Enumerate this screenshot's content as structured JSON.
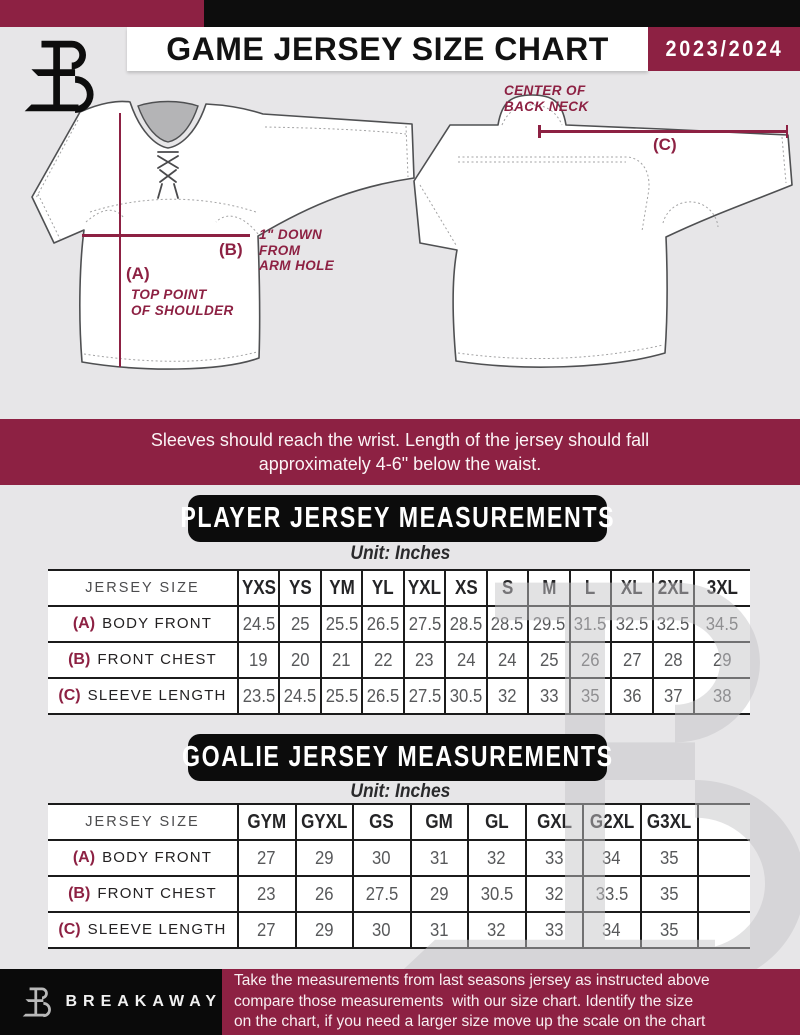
{
  "header": {
    "title": "GAME JERSEY SIZE CHART",
    "season": "2023/2024"
  },
  "diagram": {
    "front": {
      "a_label": "(A)",
      "a_caption": "TOP POINT\nOF SHOULDER",
      "b_label": "(B)",
      "b_caption": "1\" DOWN\nFROM\nARM HOLE"
    },
    "back": {
      "c_label": "(C)",
      "c_caption": "CENTER OF\nBACK NECK"
    }
  },
  "note": "Sleeves should reach the wrist. Length of the jersey should fall\napproximately 4-6\" below the waist.",
  "player_table": {
    "title": "PLAYER JERSEY MEASUREMENTS",
    "unit": "Unit: Inches",
    "corner": "JERSEY SIZE",
    "headers": [
      "YXS",
      "YS",
      "YM",
      "YL",
      "YXL",
      "XS",
      "S",
      "M",
      "L",
      "XL",
      "2XL",
      "3XL"
    ],
    "rows": [
      {
        "key": "(A)",
        "label": "BODY FRONT",
        "values": [
          "24.5",
          "25",
          "25.5",
          "26.5",
          "27.5",
          "28.5",
          "28.5",
          "29.5",
          "31.5",
          "32.5",
          "32.5",
          "34.5"
        ]
      },
      {
        "key": "(B)",
        "label": "FRONT CHEST",
        "values": [
          "19",
          "20",
          "21",
          "22",
          "23",
          "24",
          "24",
          "25",
          "26",
          "27",
          "28",
          "29"
        ]
      },
      {
        "key": "(C)",
        "label": "SLEEVE LENGTH",
        "values": [
          "23.5",
          "24.5",
          "25.5",
          "26.5",
          "27.5",
          "30.5",
          "32",
          "33",
          "35",
          "36",
          "37",
          "38"
        ]
      }
    ]
  },
  "goalie_table": {
    "title": "GOALIE JERSEY MEASUREMENTS",
    "unit": "Unit: Inches",
    "corner": "JERSEY SIZE",
    "headers": [
      "GYM",
      "GYXL",
      "GS",
      "GM",
      "GL",
      "GXL",
      "G2XL",
      "G3XL",
      ""
    ],
    "rows": [
      {
        "key": "(A)",
        "label": "BODY FRONT",
        "values": [
          "27",
          "29",
          "30",
          "31",
          "32",
          "33",
          "34",
          "35",
          ""
        ]
      },
      {
        "key": "(B)",
        "label": "FRONT CHEST",
        "values": [
          "23",
          "26",
          "27.5",
          "29",
          "30.5",
          "32",
          "33.5",
          "35",
          ""
        ]
      },
      {
        "key": "(C)",
        "label": "SLEEVE LENGTH",
        "values": [
          "27",
          "29",
          "30",
          "31",
          "32",
          "33",
          "34",
          "35",
          ""
        ]
      }
    ]
  },
  "footer": {
    "brand": "BREAKAWAY",
    "text": "Take the measurements from last seasons jersey as instructed above\ncompare those measurements  with our size chart. Identify the size\non the chart, if you need a larger size move up the scale on the chart"
  },
  "colors": {
    "maroon": "#8d2143",
    "black": "#0d0d0d",
    "background": "#e7e6e8",
    "value_gray": "#57585a"
  }
}
